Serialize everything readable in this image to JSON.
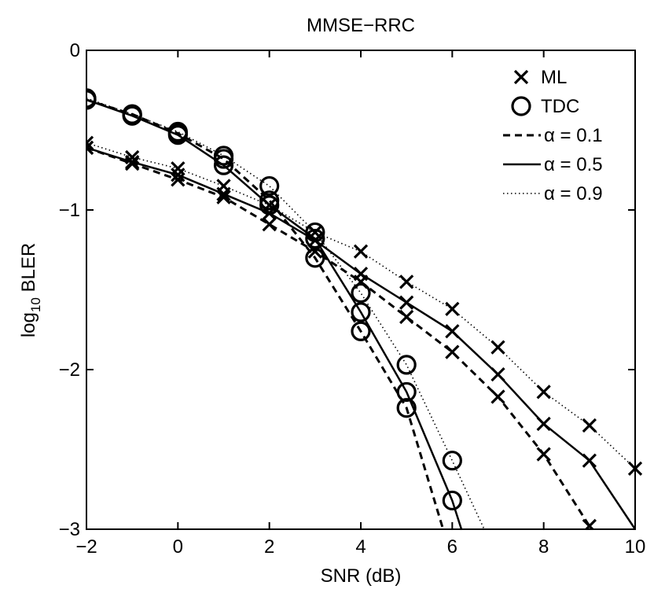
{
  "chart_data": {
    "type": "line",
    "title": "MMSE−RRC",
    "xlabel": "SNR (dB)",
    "ylabel_main": "log",
    "ylabel_sub": "10",
    "ylabel_tail": " BLER",
    "xlim": [
      -2,
      10
    ],
    "ylim": [
      -3,
      0
    ],
    "x_ticks": [
      -2,
      0,
      2,
      4,
      6,
      8,
      10
    ],
    "x_tick_labels": [
      "−2",
      "0",
      "2",
      "4",
      "6",
      "8",
      "10"
    ],
    "y_ticks": [
      0,
      -1,
      -2,
      -3
    ],
    "y_tick_labels": [
      "0",
      "−1",
      "−2",
      "−3"
    ],
    "grid": false,
    "legend_position": "top-right",
    "legend": [
      {
        "label": "ML",
        "kind": "marker",
        "marker": "x"
      },
      {
        "label": "TDC",
        "kind": "marker",
        "marker": "o"
      },
      {
        "label": "α = 0.1",
        "kind": "line",
        "dash": "dashed"
      },
      {
        "label": "α = 0.5",
        "kind": "line",
        "dash": "solid"
      },
      {
        "label": "α = 0.9",
        "kind": "line",
        "dash": "dotted"
      }
    ],
    "series": [
      {
        "detector": "ML",
        "alpha": 0.1,
        "marker": "x",
        "dash": "dashed",
        "x": [
          -2,
          -1,
          0,
          1,
          2,
          3,
          4,
          5,
          6,
          7,
          8,
          9
        ],
        "y": [
          -0.61,
          -0.71,
          -0.81,
          -0.92,
          -1.09,
          -1.26,
          -1.45,
          -1.67,
          -1.89,
          -2.17,
          -2.53,
          -2.98
        ]
      },
      {
        "detector": "ML",
        "alpha": 0.5,
        "marker": "x",
        "dash": "solid",
        "x": [
          -2,
          -1,
          0,
          1,
          2,
          3,
          4,
          5,
          6,
          7,
          8,
          9,
          10
        ],
        "y": [
          -0.61,
          -0.7,
          -0.78,
          -0.9,
          -1.02,
          -1.19,
          -1.4,
          -1.58,
          -1.76,
          -2.03,
          -2.34,
          -2.57,
          -3.0
        ]
      },
      {
        "detector": "ML",
        "alpha": 0.9,
        "marker": "x",
        "dash": "dotted",
        "x": [
          -2,
          -1,
          0,
          1,
          2,
          3,
          4,
          5,
          6,
          7,
          8,
          9,
          10
        ],
        "y": [
          -0.58,
          -0.67,
          -0.74,
          -0.85,
          -0.97,
          -1.14,
          -1.26,
          -1.45,
          -1.62,
          -1.86,
          -2.14,
          -2.35,
          -2.62
        ]
      },
      {
        "detector": "TDC",
        "alpha": 0.1,
        "marker": "o",
        "dash": "dashed",
        "x": [
          -2,
          -1,
          0,
          1,
          2,
          3,
          4,
          5,
          5.8
        ],
        "y": [
          -0.31,
          -0.4,
          -0.52,
          -0.68,
          -0.94,
          -1.3,
          -1.76,
          -2.24,
          -3.0
        ]
      },
      {
        "detector": "TDC",
        "alpha": 0.5,
        "marker": "o",
        "dash": "solid",
        "x": [
          -2,
          -1,
          0,
          1,
          2,
          3,
          4,
          5,
          6,
          6.2
        ],
        "y": [
          -0.31,
          -0.41,
          -0.53,
          -0.72,
          -0.97,
          -1.18,
          -1.64,
          -2.14,
          -2.82,
          -3.0
        ]
      },
      {
        "detector": "TDC",
        "alpha": 0.9,
        "marker": "o",
        "dash": "dotted",
        "x": [
          -2,
          -1,
          0,
          1,
          2,
          3,
          4,
          5,
          6,
          6.7
        ],
        "y": [
          -0.3,
          -0.4,
          -0.51,
          -0.66,
          -0.85,
          -1.14,
          -1.52,
          -1.97,
          -2.57,
          -3.0
        ]
      }
    ]
  }
}
